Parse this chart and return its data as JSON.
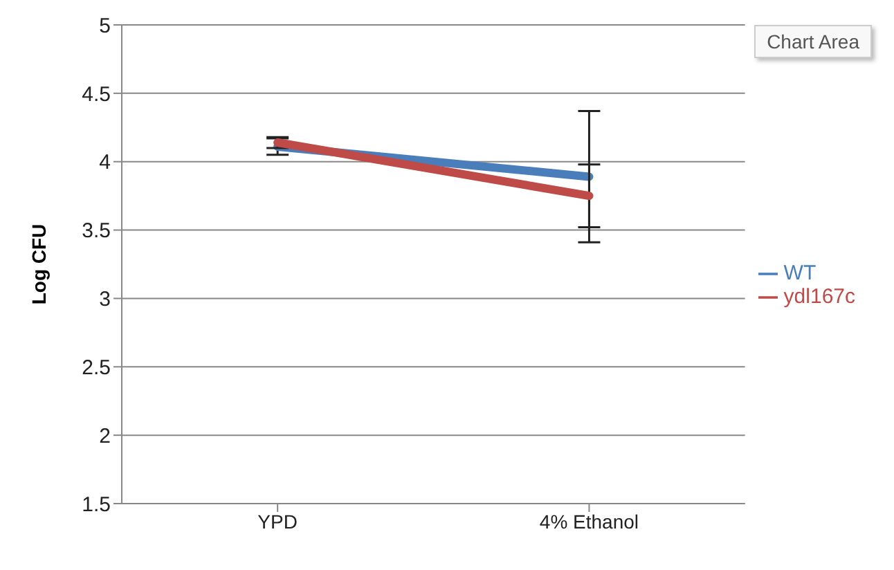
{
  "chart_data": {
    "type": "line",
    "ylabel": "Log CFU",
    "categories": [
      "YPD",
      "4% Ethanol"
    ],
    "series": [
      {
        "name": "WT",
        "color": "#4a7ebb",
        "values": [
          4.11,
          3.89
        ],
        "errors": [
          0.06,
          0.48
        ]
      },
      {
        "name": "ydl167c",
        "color": "#be4b48",
        "values": [
          4.14,
          3.75
        ],
        "errors": [
          0.04,
          0.23
        ]
      }
    ],
    "ylim": [
      1.5,
      5
    ],
    "yticks": [
      1.5,
      2,
      2.5,
      3,
      3.5,
      4,
      4.5,
      5
    ],
    "grid": "y",
    "legend": "right",
    "marker": "none",
    "line_style": "solid",
    "annotations": [
      "Chart Area"
    ]
  }
}
